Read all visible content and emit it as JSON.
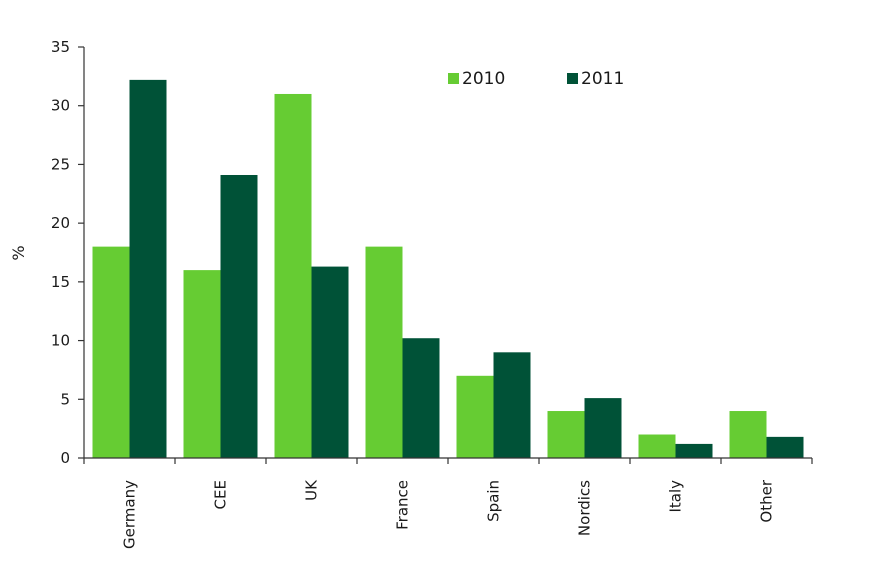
{
  "chart_data": {
    "type": "bar",
    "title": "",
    "xlabel": "",
    "ylabel": "%",
    "ylim": [
      0,
      35
    ],
    "yticks": [
      0,
      5,
      10,
      15,
      20,
      25,
      30,
      35
    ],
    "grid": false,
    "legend_position": "top-right",
    "categories": [
      "Germany",
      "CEE",
      "UK",
      "France",
      "Spain",
      "Nordics",
      "Italy",
      "Other"
    ],
    "series": [
      {
        "name": "2010",
        "color": "#66cc33",
        "values": [
          18,
          16,
          31,
          18,
          7,
          4,
          2,
          4
        ]
      },
      {
        "name": "2011",
        "color": "#005237",
        "values": [
          32.2,
          24.1,
          16.3,
          10.2,
          9,
          5.1,
          1.2,
          1.8
        ]
      }
    ]
  }
}
